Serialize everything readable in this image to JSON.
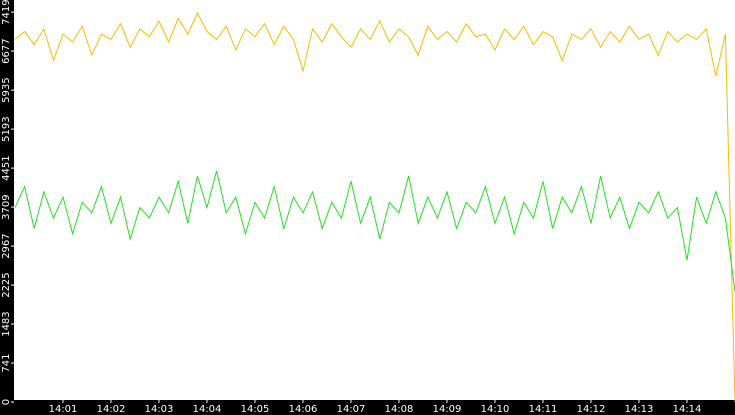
{
  "chart_data": {
    "type": "line",
    "x": [
      840,
      840.2,
      840.4,
      840.6,
      840.8,
      841,
      841.2,
      841.4,
      841.6,
      841.8,
      842,
      842.2,
      842.4,
      842.6,
      842.8,
      843,
      843.2,
      843.4,
      843.6,
      843.8,
      844,
      844.2,
      844.4,
      844.6,
      844.8,
      845,
      845.2,
      845.4,
      845.6,
      845.8,
      846,
      846.2,
      846.4,
      846.6,
      846.8,
      847,
      847.2,
      847.4,
      847.6,
      847.8,
      848,
      848.2,
      848.4,
      848.6,
      848.8,
      849,
      849.2,
      849.4,
      849.6,
      849.8,
      850,
      850.2,
      850.4,
      850.6,
      850.8,
      851,
      851.2,
      851.4,
      851.6,
      851.8,
      852,
      852.2,
      852.4,
      852.6,
      852.8,
      853,
      853.2,
      853.4,
      853.6,
      853.8,
      854,
      854.2,
      854.4,
      854.6,
      854.8,
      855
    ],
    "series": [
      {
        "color": "#f2bd00",
        "values": [
          6900,
          7050,
          6800,
          7100,
          6500,
          7000,
          6850,
          7150,
          6600,
          7000,
          6900,
          7200,
          6750,
          7100,
          6950,
          7250,
          6850,
          7300,
          7000,
          7400,
          7050,
          6900,
          7150,
          6700,
          7100,
          6950,
          7200,
          6800,
          7150,
          6900,
          6300,
          7100,
          6850,
          7200,
          6950,
          6750,
          7100,
          6900,
          7250,
          6850,
          7100,
          6950,
          6600,
          7150,
          6900,
          7050,
          6850,
          7200,
          6950,
          7000,
          6700,
          7100,
          6900,
          7150,
          6800,
          7050,
          6950,
          6500,
          7000,
          6900,
          7100,
          6750,
          7050,
          6850,
          7150,
          6900,
          7000,
          6600,
          7050,
          6850,
          7000,
          6900,
          7100,
          6200,
          7000,
          0
        ]
      },
      {
        "color": "#22e022",
        "values": [
          3700,
          4100,
          3300,
          4000,
          3500,
          3900,
          3200,
          3800,
          3600,
          4100,
          3400,
          3900,
          3100,
          3700,
          3500,
          3900,
          3600,
          4200,
          3400,
          4300,
          3700,
          4400,
          3600,
          3900,
          3200,
          3800,
          3500,
          4100,
          3300,
          3900,
          3600,
          4000,
          3300,
          3800,
          3500,
          4200,
          3400,
          3900,
          3100,
          3800,
          3600,
          4300,
          3400,
          3900,
          3500,
          4000,
          3300,
          3800,
          3600,
          4100,
          3400,
          3900,
          3200,
          3800,
          3500,
          4200,
          3300,
          3900,
          3600,
          4100,
          3400,
          4300,
          3500,
          3900,
          3300,
          3800,
          3600,
          4000,
          3500,
          3700,
          2700,
          3900,
          3400,
          4000,
          3500,
          2100
        ]
      }
    ],
    "xlim": [
      840,
      855
    ],
    "xticks": [
      {
        "value": 841,
        "label": "14:01"
      },
      {
        "value": 842,
        "label": "14:02"
      },
      {
        "value": 843,
        "label": "14:03"
      },
      {
        "value": 844,
        "label": "14:04"
      },
      {
        "value": 845,
        "label": "14:05"
      },
      {
        "value": 846,
        "label": "14:06"
      },
      {
        "value": 847,
        "label": "14:07"
      },
      {
        "value": 848,
        "label": "14:08"
      },
      {
        "value": 849,
        "label": "14:09"
      },
      {
        "value": 850,
        "label": "14:10"
      },
      {
        "value": 851,
        "label": "14:11"
      },
      {
        "value": 852,
        "label": "14:12"
      },
      {
        "value": 853,
        "label": "14:13"
      },
      {
        "value": 854,
        "label": "14:14"
      }
    ],
    "ylim": [
      0,
      7650
    ],
    "yticks": [
      0,
      741,
      1483,
      2225,
      2967,
      3709,
      4451,
      5193,
      5935,
      6677,
      7419
    ]
  }
}
